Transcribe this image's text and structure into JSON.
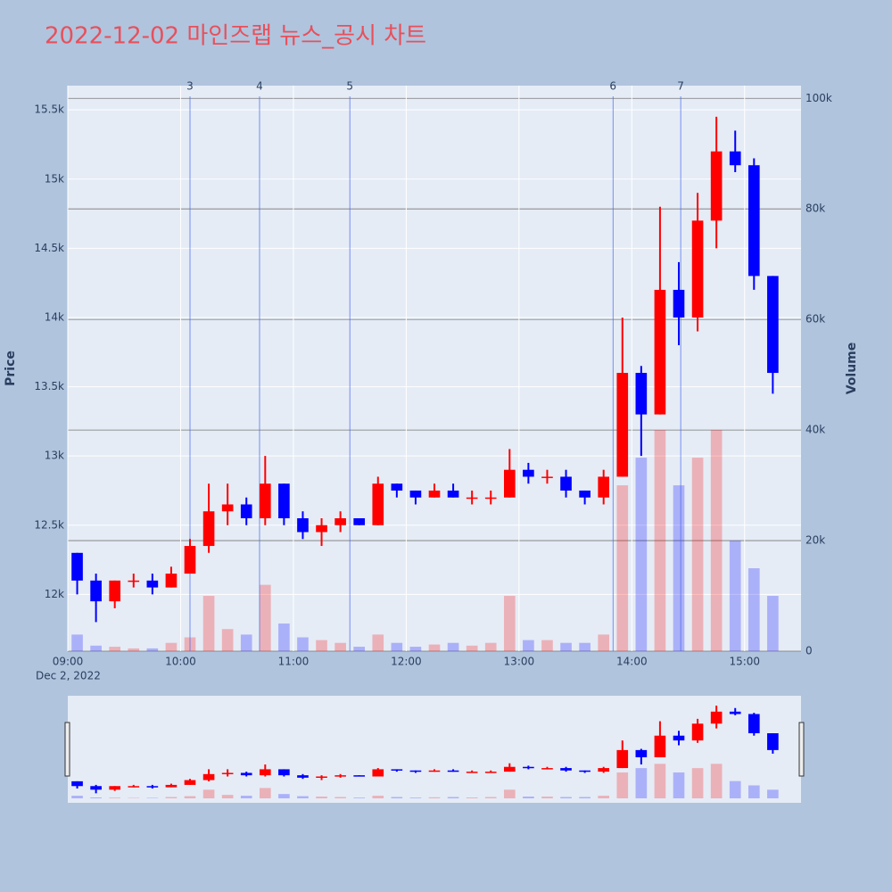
{
  "chart_data": {
    "type": "candlestick",
    "title": "2022-12-02 마인즈랩 뉴스_공시 차트",
    "title_color": "#e8505b",
    "y_label": "Price",
    "y2_label": "Volume",
    "x_date_label": "Dec 2, 2022",
    "increasing_color": "#ff0000",
    "decreasing_color": "#0000ff",
    "x": [
      "09:00",
      "09:10",
      "09:20",
      "09:30",
      "09:40",
      "09:50",
      "10:00",
      "10:10",
      "10:20",
      "10:30",
      "10:40",
      "10:50",
      "11:00",
      "11:10",
      "11:20",
      "11:30",
      "11:40",
      "11:50",
      "12:00",
      "12:10",
      "12:20",
      "12:30",
      "12:40",
      "12:50",
      "13:00",
      "13:10",
      "13:20",
      "13:30",
      "13:40",
      "13:50",
      "14:00",
      "14:10",
      "14:20",
      "14:30",
      "14:40",
      "14:50",
      "15:00",
      "15:10"
    ],
    "open": [
      12300,
      12100,
      11950,
      12100,
      12100,
      12050,
      12150,
      12350,
      12600,
      12650,
      12550,
      12800,
      12550,
      12450,
      12500,
      12550,
      12500,
      12800,
      12750,
      12700,
      12750,
      12700,
      12700,
      12700,
      12900,
      12850,
      12850,
      12750,
      12700,
      12850,
      13600,
      13300,
      14200,
      14000,
      14700,
      15200,
      15100,
      14300
    ],
    "high": [
      12300,
      12150,
      12100,
      12150,
      12150,
      12200,
      12400,
      12800,
      12800,
      12700,
      13000,
      12800,
      12600,
      12550,
      12600,
      12550,
      12850,
      12800,
      12750,
      12800,
      12800,
      12750,
      12750,
      13050,
      12950,
      12900,
      12900,
      12750,
      12900,
      14000,
      13650,
      14800,
      14400,
      14900,
      15450,
      15350,
      15150,
      14300
    ],
    "low": [
      12000,
      11800,
      11900,
      12050,
      12000,
      12050,
      12150,
      12300,
      12500,
      12500,
      12500,
      12500,
      12400,
      12350,
      12450,
      12500,
      12500,
      12700,
      12650,
      12700,
      12700,
      12650,
      12650,
      12700,
      12800,
      12800,
      12700,
      12650,
      12650,
      12850,
      13000,
      13300,
      13800,
      13900,
      14500,
      15050,
      14200,
      13450
    ],
    "close": [
      12100,
      11950,
      12100,
      12100,
      12050,
      12150,
      12350,
      12600,
      12650,
      12550,
      12800,
      12550,
      12450,
      12500,
      12550,
      12500,
      12800,
      12750,
      12700,
      12750,
      12700,
      12700,
      12700,
      12900,
      12850,
      12850,
      12750,
      12700,
      12850,
      13600,
      13300,
      14200,
      14000,
      14700,
      15200,
      15100,
      14300,
      13600
    ],
    "volume": [
      3000,
      1000,
      800,
      500,
      500,
      1500,
      2500,
      10000,
      4000,
      3000,
      12000,
      5000,
      2500,
      2000,
      1500,
      800,
      3000,
      1500,
      800,
      1200,
      1500,
      1000,
      1500,
      10000,
      2000,
      2000,
      1500,
      1500,
      3000,
      30000,
      35000,
      40000,
      30000,
      35000,
      40000,
      20000,
      15000,
      10000
    ],
    "xlim": [
      "09:00",
      "15:30"
    ],
    "xticks": [
      "09:00",
      "10:00",
      "11:00",
      "12:00",
      "13:00",
      "14:00",
      "15:00"
    ],
    "ylim": [
      11590,
      15675
    ],
    "yticks": [
      {
        "value": 12000,
        "label": "12k"
      },
      {
        "value": 12500,
        "label": "12.5k"
      },
      {
        "value": 13000,
        "label": "13k"
      },
      {
        "value": 13500,
        "label": "13.5k"
      },
      {
        "value": 14000,
        "label": "14k"
      },
      {
        "value": 14500,
        "label": "14.5k"
      },
      {
        "value": 15000,
        "label": "15k"
      },
      {
        "value": 15500,
        "label": "15.5k"
      }
    ],
    "y2lim": [
      0,
      102300
    ],
    "y2ticks": [
      0,
      {
        "value": 20000,
        "label": "20k"
      },
      {
        "value": 40000,
        "label": "40k"
      },
      {
        "value": 60000,
        "label": "60k"
      },
      {
        "value": 80000,
        "label": "80k"
      },
      {
        "value": 100000,
        "label": "100k"
      }
    ],
    "news": [
      {
        "x": "10:05",
        "label": "3"
      },
      {
        "x": "10:42",
        "label": "4"
      },
      {
        "x": "11:30",
        "label": "5"
      },
      {
        "x": "13:50",
        "label": "6"
      },
      {
        "x": "14:26",
        "label": "7"
      }
    ]
  }
}
